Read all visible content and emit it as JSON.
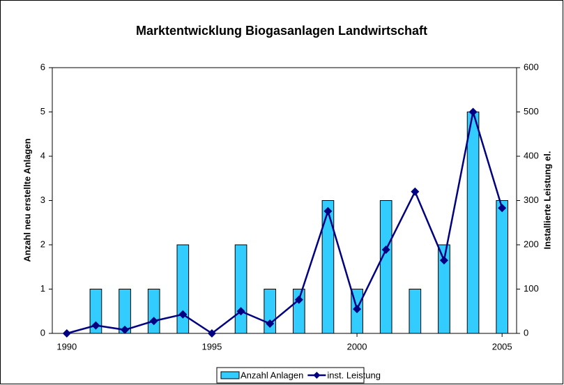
{
  "chart_data": {
    "type": "bar_line",
    "title": "Marktentwicklung Biogasanlagen Landwirtschaft",
    "ylabel": "Anzahl neu erstellte Anlagen",
    "y2label": "Installierte Leistung el.",
    "x": [
      1990,
      1991,
      1992,
      1993,
      1994,
      1995,
      1996,
      1997,
      1998,
      1999,
      2000,
      2001,
      2002,
      2003,
      2004,
      2005
    ],
    "xlim": [
      1989.5,
      2005.5
    ],
    "xticks": [
      1990,
      1995,
      2000,
      2005
    ],
    "ylim": [
      0,
      6
    ],
    "yticks": [
      0,
      1,
      2,
      3,
      4,
      5,
      6
    ],
    "y2lim": [
      0,
      600
    ],
    "y2ticks": [
      0,
      100,
      200,
      300,
      400,
      500,
      600
    ],
    "legend": "bottom",
    "series": [
      {
        "name": "Anzahl Anlagen",
        "kind": "bar",
        "color": "#33ccff",
        "values": [
          0,
          1,
          1,
          1,
          2,
          0,
          2,
          1,
          1,
          3,
          1,
          3,
          1,
          2,
          5,
          3
        ]
      },
      {
        "name": "inst. Leistung",
        "kind": "line",
        "axis": "y2",
        "color": "#000080",
        "values": [
          0,
          18,
          8,
          28,
          43,
          0,
          50,
          22,
          76,
          276,
          55,
          189,
          320,
          165,
          500,
          283
        ]
      }
    ]
  }
}
